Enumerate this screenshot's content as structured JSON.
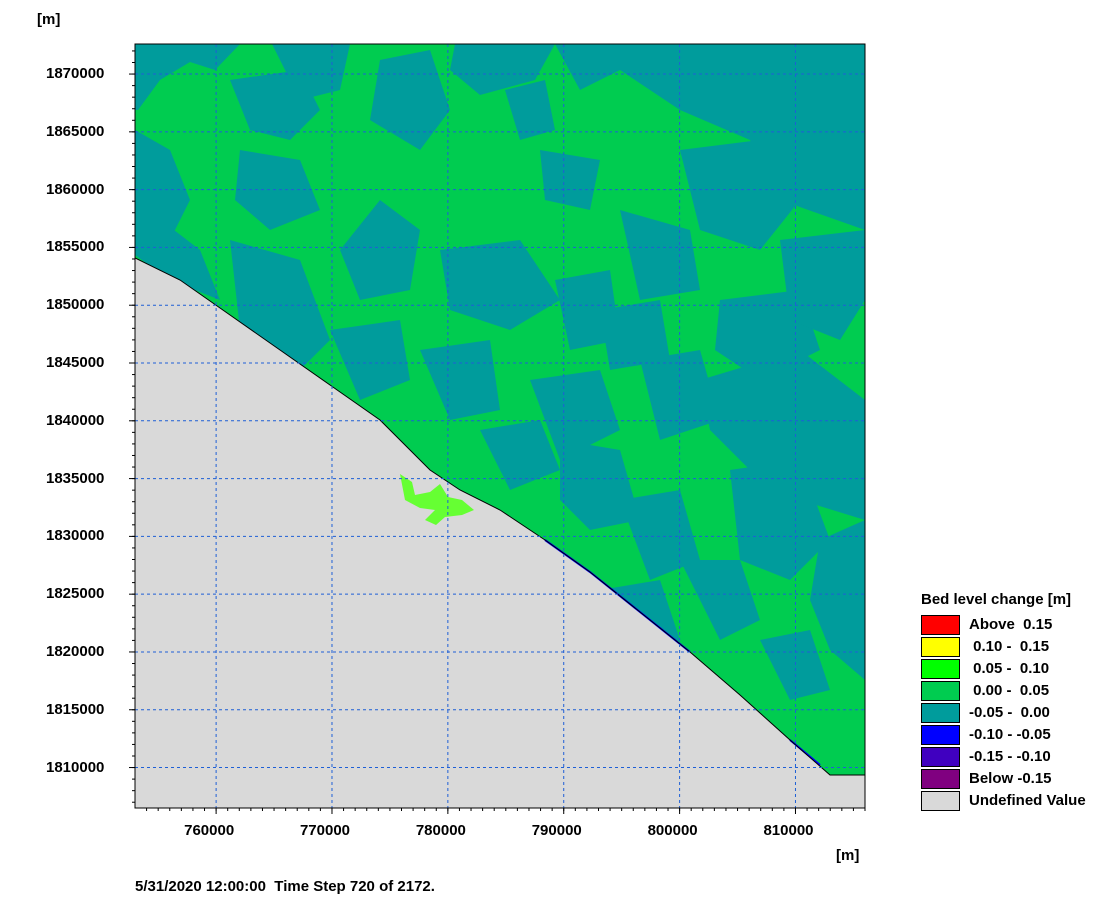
{
  "axes": {
    "y_unit": "[m]",
    "x_unit": "[m]",
    "x_ticks": [
      "760000",
      "770000",
      "780000",
      "790000",
      "800000",
      "810000"
    ],
    "y_ticks": [
      "1870000",
      "1865000",
      "1860000",
      "1855000",
      "1850000",
      "1845000",
      "1840000",
      "1835000",
      "1830000",
      "1825000",
      "1820000",
      "1815000",
      "1810000"
    ],
    "x_range": [
      753000,
      816000
    ],
    "y_range": [
      1806500,
      1872600
    ]
  },
  "status": {
    "timestamp": "5/31/2020 12:00:00",
    "time_step": "Time Step 720 of 2172."
  },
  "legend": {
    "title": "Bed level change [m]",
    "items": [
      {
        "label": "Above  0.15",
        "color": "#ff0000"
      },
      {
        "label": " 0.10 -  0.15",
        "color": "#ffff00"
      },
      {
        "label": " 0.05 -  0.10",
        "color": "#00ff00"
      },
      {
        "label": " 0.00 -  0.05",
        "color": "#00cc50"
      },
      {
        "label": "-0.05 -  0.00",
        "color": "#009c9c"
      },
      {
        "label": "-0.10 - -0.05",
        "color": "#0000ff"
      },
      {
        "label": "-0.15 - -0.10",
        "color": "#4000c0"
      },
      {
        "label": "Below -0.15",
        "color": "#800080"
      },
      {
        "label": "Undefined Value",
        "color": "#d9d9d9"
      }
    ]
  }
}
